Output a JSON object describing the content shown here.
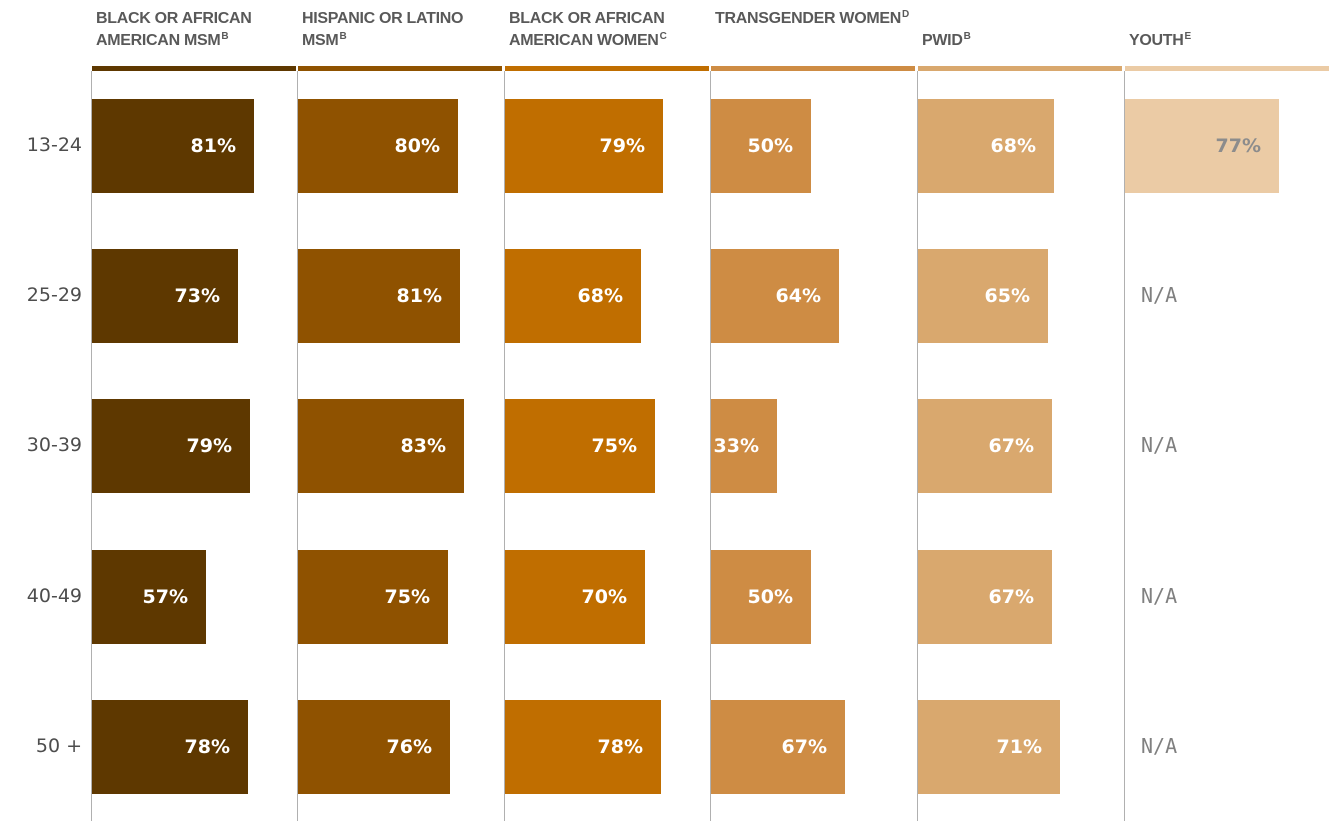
{
  "chart_data": {
    "type": "bar",
    "orientation": "horizontal",
    "categories": [
      "13-24",
      "25-29",
      "30-39",
      "40-49",
      "50 +"
    ],
    "xlim": [
      0,
      100
    ],
    "grid": false,
    "series": [
      {
        "name": "BLACK OR AFRICAN AMERICAN MSM",
        "superscript": "b",
        "color": "#5e3800",
        "text_color": "#ffffff",
        "labels": [
          "81%",
          "73%",
          "79%",
          "57%",
          "78%"
        ],
        "values": [
          81,
          73,
          79,
          57,
          78
        ]
      },
      {
        "name": "HISPANIC OR LATINO MSM",
        "superscript": "b",
        "color": "#8f5200",
        "text_color": "#ffffff",
        "labels": [
          "80%",
          "81%",
          "83%",
          "75%",
          "76%"
        ],
        "values": [
          80,
          81,
          83,
          75,
          76
        ]
      },
      {
        "name": "BLACK OR AFRICAN AMERICAN WOMEN",
        "superscript": "c",
        "color": "#c06e00",
        "text_color": "#ffffff",
        "labels": [
          "79%",
          "68%",
          "75%",
          "70%",
          "78%"
        ],
        "values": [
          79,
          68,
          75,
          70,
          78
        ]
      },
      {
        "name": "TRANSGENDER WOMEN",
        "superscript": "d",
        "color": "#ce8c44",
        "text_color": "#ffffff",
        "labels": [
          "50%",
          "64%",
          "33%",
          "50%",
          "67%"
        ],
        "values": [
          50,
          64,
          33,
          50,
          67
        ]
      },
      {
        "name": "PWID",
        "superscript": "b",
        "color": "#d9a86e",
        "text_color": "#ffffff",
        "labels": [
          "68%",
          "65%",
          "67%",
          "67%",
          "71%"
        ],
        "values": [
          68,
          65,
          67,
          67,
          71
        ]
      },
      {
        "name": "YOUTH",
        "superscript": "e",
        "color": "#ebcba5",
        "text_color": "#8c8c8c",
        "labels": [
          "77%",
          "N/A",
          "N/A",
          "N/A",
          "N/A"
        ],
        "values": [
          77,
          null,
          null,
          null,
          null
        ]
      }
    ]
  }
}
